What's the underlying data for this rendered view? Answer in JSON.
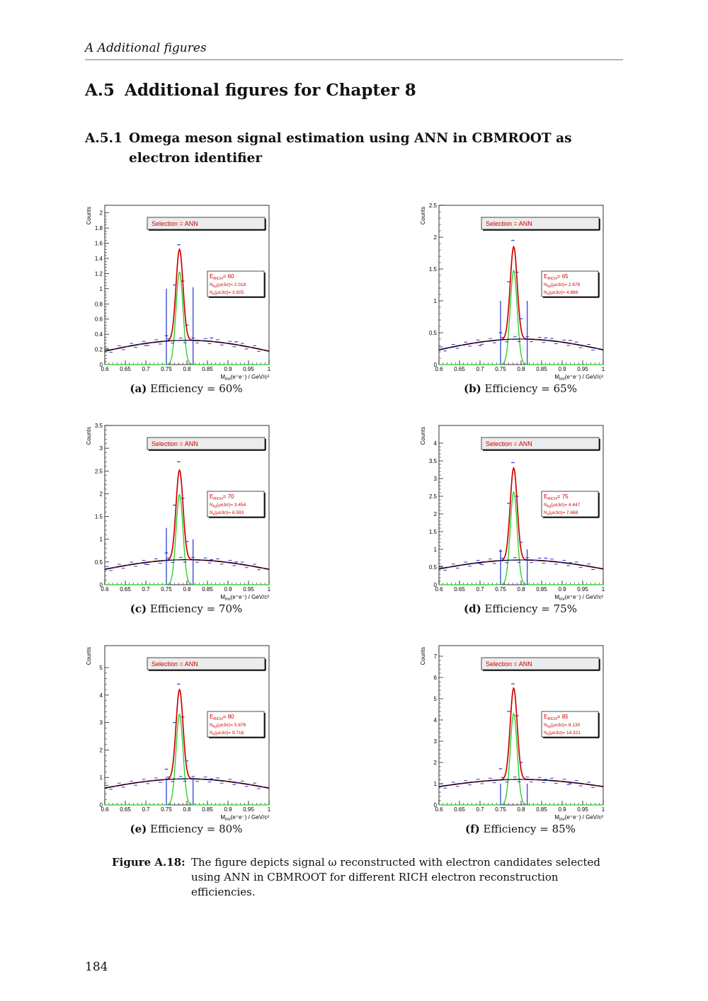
{
  "running_head": "A  Additional figures",
  "section": {
    "num": "A.5",
    "title": "Additional figures for Chapter 8"
  },
  "subsection": {
    "num": "A.5.1",
    "title": "Omega meson signal estimation using ANN in CBMROOT as electron identifier"
  },
  "chart_data": [
    {
      "type": "line",
      "panel": "(a)",
      "caption": "Efficiency = 60%",
      "legend_title": "Selection = ANN",
      "xlim": [
        0.6,
        1.0
      ],
      "ylim": [
        0,
        2.1
      ],
      "yticks": [
        0,
        0.2,
        0.4,
        0.6,
        0.8,
        1,
        1.2,
        1.4,
        1.6,
        1.8,
        2
      ],
      "ytick_labels": [
        "0",
        "0.2",
        "0.4",
        "0.6",
        "0.8",
        "1",
        "1.2",
        "1.4",
        "1.6",
        "1.8",
        "2"
      ],
      "peak": 1.52,
      "bg": [
        0.15,
        0.32,
        0.27
      ],
      "sig": 1.22,
      "pts": [
        [
          0.7,
          0.25
        ],
        [
          0.75,
          0.38
        ],
        [
          0.77,
          1.05
        ],
        [
          0.78,
          1.58
        ],
        [
          0.79,
          1.1
        ],
        [
          0.8,
          0.52
        ],
        [
          0.86,
          0.35
        ],
        [
          0.92,
          0.3
        ]
      ],
      "vlines": [
        [
          0.75,
          1.0
        ],
        [
          0.815,
          1.02
        ]
      ],
      "info": {
        "e_rich": "60",
        "n_bg": "2.018",
        "n_s": "3.925"
      }
    },
    {
      "type": "line",
      "panel": "(b)",
      "caption": "Efficiency = 65%",
      "legend_title": "Selection = ANN",
      "xlim": [
        0.6,
        1.0
      ],
      "ylim": [
        0,
        2.5
      ],
      "yticks": [
        0,
        0.5,
        1,
        1.5,
        2,
        2.5
      ],
      "ytick_labels": [
        "0",
        "0.5",
        "1",
        "1.5",
        "2",
        "2.5"
      ],
      "peak": 1.85,
      "bg": [
        0.2,
        0.4,
        0.32
      ],
      "sig": 1.48,
      "pts": [
        [
          0.7,
          0.3
        ],
        [
          0.75,
          0.5
        ],
        [
          0.77,
          1.3
        ],
        [
          0.78,
          1.95
        ],
        [
          0.79,
          1.45
        ],
        [
          0.8,
          0.72
        ],
        [
          0.86,
          0.42
        ],
        [
          0.92,
          0.38
        ]
      ],
      "vlines": [
        [
          0.75,
          1.0
        ],
        [
          0.815,
          1.0
        ]
      ],
      "info": {
        "e_rich": "65",
        "n_bg": "2.678",
        "n_s": "4.889"
      }
    },
    {
      "type": "line",
      "panel": "(c)",
      "caption": "Efficiency = 70%",
      "legend_title": "Selection = ANN",
      "xlim": [
        0.6,
        1.0
      ],
      "ylim": [
        0,
        3.5
      ],
      "yticks": [
        0,
        0.5,
        1,
        1.5,
        2,
        2.5,
        3,
        3.5
      ],
      "ytick_labels": [
        "0",
        "0.5",
        "1",
        "1.5",
        "2",
        "2.5",
        "3",
        "3.5"
      ],
      "peak": 2.52,
      "bg": [
        0.3,
        0.55,
        0.4
      ],
      "sig": 1.98,
      "pts": [
        [
          0.7,
          0.45
        ],
        [
          0.75,
          0.7
        ],
        [
          0.77,
          1.75
        ],
        [
          0.78,
          2.7
        ],
        [
          0.79,
          1.9
        ],
        [
          0.8,
          0.95
        ],
        [
          0.86,
          0.55
        ],
        [
          0.92,
          0.5
        ]
      ],
      "vlines": [
        [
          0.75,
          1.25
        ],
        [
          0.815,
          1.0
        ]
      ],
      "info": {
        "e_rich": "70",
        "n_bg": "3.454",
        "n_s": "6.593"
      }
    },
    {
      "type": "line",
      "panel": "(d)",
      "caption": "Efficiency = 75%",
      "legend_title": "Selection = ANN",
      "xlim": [
        0.6,
        1.0
      ],
      "ylim": [
        0,
        4.5
      ],
      "yticks": [
        0,
        0.5,
        1,
        1.5,
        2,
        2.5,
        3,
        3.5,
        4
      ],
      "ytick_labels": [
        "0",
        "0.5",
        "1",
        "1.5",
        "2",
        "2.5",
        "3",
        "3.5",
        "4"
      ],
      "peak": 3.3,
      "bg": [
        0.4,
        0.7,
        0.5
      ],
      "sig": 2.62,
      "pts": [
        [
          0.7,
          0.6
        ],
        [
          0.75,
          0.95
        ],
        [
          0.77,
          2.3
        ],
        [
          0.78,
          3.45
        ],
        [
          0.79,
          2.5
        ],
        [
          0.8,
          1.2
        ],
        [
          0.86,
          0.75
        ],
        [
          0.92,
          0.62
        ]
      ],
      "vlines": [
        [
          0.75,
          1.0
        ],
        [
          0.815,
          1.0
        ]
      ],
      "info": {
        "e_rich": "75",
        "n_bg": "4.447",
        "n_s": "7.668"
      }
    },
    {
      "type": "line",
      "panel": "(e)",
      "caption": "Efficiency = 80%",
      "legend_title": "Selection = ANN",
      "xlim": [
        0.6,
        1.0
      ],
      "ylim": [
        0,
        5.8
      ],
      "yticks": [
        0,
        1,
        2,
        3,
        4,
        5
      ],
      "ytick_labels": [
        "0",
        "1",
        "2",
        "3",
        "4",
        "5"
      ],
      "peak": 4.2,
      "bg": [
        0.55,
        0.95,
        0.6
      ],
      "sig": 3.3,
      "pts": [
        [
          0.7,
          0.85
        ],
        [
          0.75,
          1.3
        ],
        [
          0.77,
          3.0
        ],
        [
          0.78,
          4.4
        ],
        [
          0.79,
          3.2
        ],
        [
          0.8,
          1.6
        ],
        [
          0.86,
          0.95
        ],
        [
          0.92,
          0.8
        ]
      ],
      "vlines": [
        [
          0.75,
          1.0
        ],
        [
          0.815,
          1.0
        ]
      ],
      "info": {
        "e_rich": "80",
        "n_bg": "5.876",
        "n_s": "9.718"
      }
    },
    {
      "type": "line",
      "panel": "(f)",
      "caption": "Efficiency = 85%",
      "legend_title": "Selection = ANN",
      "xlim": [
        0.6,
        1.0
      ],
      "ylim": [
        0,
        7.5
      ],
      "yticks": [
        0,
        1,
        2,
        3,
        4,
        5,
        6,
        7
      ],
      "ytick_labels": [
        "0",
        "1",
        "2",
        "3",
        "4",
        "5",
        "6",
        "7"
      ],
      "peak": 5.5,
      "bg": [
        0.8,
        1.2,
        0.75
      ],
      "sig": 4.3,
      "pts": [
        [
          0.7,
          1.1
        ],
        [
          0.75,
          1.7
        ],
        [
          0.77,
          4.4
        ],
        [
          0.78,
          5.7
        ],
        [
          0.79,
          4.2
        ],
        [
          0.8,
          2.0
        ],
        [
          0.86,
          1.2
        ],
        [
          0.92,
          1.0
        ]
      ],
      "vlines": [
        [
          0.75,
          1.0
        ],
        [
          0.815,
          1.0
        ]
      ],
      "info": {
        "e_rich": "85",
        "n_bg": "8.130",
        "n_s": "14.321"
      }
    }
  ],
  "axis": {
    "y_label": "Counts",
    "x_label_main": "M",
    "x_label_sub": "inv",
    "x_label_rest": "(e⁺e⁻) / GeV/c²",
    "xtick_labels": [
      "0.6",
      "0.65",
      "0.7",
      "0.75",
      "0.8",
      "0.85",
      "0.9",
      "0.95",
      "1"
    ]
  },
  "info_labels": {
    "e_prefix": "E",
    "e_sub": "RICH",
    "e_sep": "= ",
    "nbg_prefix": "N",
    "nbg_sub": "bg",
    "nbg_rest": "(μ±3σ)= ",
    "ns_prefix": "N",
    "ns_sub": "s",
    "ns_rest": "(μ±3σ)= "
  },
  "colors": {
    "total_fit": "#d00000",
    "signal": "#22cc22",
    "background": "#000000",
    "points": "#2233cc",
    "legend_text": "#d00000"
  },
  "figure_caption": {
    "label": "Figure A.18:",
    "text": "The figure depicts signal ω reconstructed with electron candidates selected using ANN in CBMROOT for different RICH electron reconstruction efficiencies."
  },
  "page_number": "184"
}
